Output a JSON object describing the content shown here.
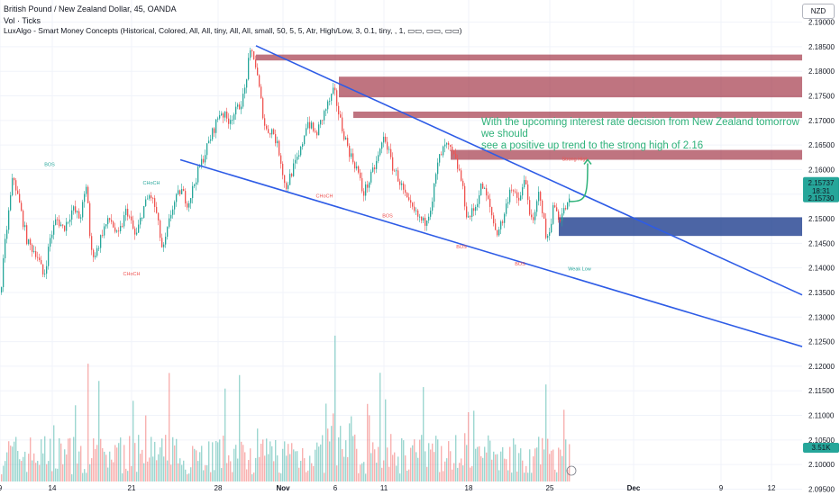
{
  "header": {
    "symbol_line": "British Pound / New Zealand Dollar, 45, OANDA",
    "volume_line": "Vol · Ticks",
    "indicator_line": "LuxAlgo - Smart Money Concepts (Historical, Colored, All, All, tiny, All, All, small, 50, 5, 5, Atr, High/Low, 3, 0.1, tiny, , 1, ▭▭, ▭▭, ▭▭)"
  },
  "toolbar": {
    "currency": "NZD"
  },
  "annotation": {
    "lines": [
      "With the upcoming interest rate decision from New Zealand tomorrow",
      "we should",
      "see a positive up trend to the strong high of 2.16"
    ]
  },
  "price_badge": {
    "price": "2.15737",
    "countdown": "18:31",
    "second_price": "2.15730"
  },
  "volume_badge": "3.51K",
  "colors": {
    "up": "#26a69a",
    "down": "#ef5350",
    "trend_line": "#2e5ce6",
    "supply_zone": "#9c2a3c",
    "demand_zone": "#1f3f8f",
    "annotation": "#2fb27a"
  },
  "chart_data": {
    "type": "candlestick",
    "y_ticks": [
      "2.19000",
      "2.18500",
      "2.18000",
      "2.17500",
      "2.17000",
      "2.16500",
      "2.16000",
      "2.15500",
      "2.15000",
      "2.14500",
      "2.14000",
      "2.13500",
      "2.13000",
      "2.12500",
      "2.12000",
      "2.11500",
      "2.11000",
      "2.10500",
      "2.10000",
      "2.09500"
    ],
    "y_tick_values": [
      2.19,
      2.185,
      2.18,
      2.175,
      2.17,
      2.165,
      2.16,
      2.155,
      2.15,
      2.145,
      2.14,
      2.135,
      2.13,
      2.125,
      2.12,
      2.115,
      2.11,
      2.105,
      2.1,
      2.095
    ],
    "ylim": [
      2.0938,
      2.1945
    ],
    "x_ticks": [
      "9",
      "14",
      "21",
      "28",
      "Nov",
      "6",
      "11",
      "18",
      "25",
      "Dec",
      "9",
      "12"
    ],
    "x_tick_index": [
      0,
      58,
      146,
      242,
      314,
      372,
      426,
      520,
      610,
      703,
      800,
      856
    ],
    "x_total": 932,
    "last_price": 2.15737,
    "price_path": [
      [
        0,
        2.135
      ],
      [
        5,
        2.145
      ],
      [
        14,
        2.159
      ],
      [
        22,
        2.152
      ],
      [
        30,
        2.145
      ],
      [
        40,
        2.143
      ],
      [
        48,
        2.138
      ],
      [
        55,
        2.146
      ],
      [
        62,
        2.15
      ],
      [
        70,
        2.148
      ],
      [
        80,
        2.152
      ],
      [
        88,
        2.15
      ],
      [
        96,
        2.157
      ],
      [
        100,
        2.143
      ],
      [
        106,
        2.143
      ],
      [
        114,
        2.148
      ],
      [
        122,
        2.15
      ],
      [
        130,
        2.146
      ],
      [
        140,
        2.152
      ],
      [
        150,
        2.146
      ],
      [
        158,
        2.152
      ],
      [
        166,
        2.155
      ],
      [
        172,
        2.152
      ],
      [
        180,
        2.143
      ],
      [
        190,
        2.152
      ],
      [
        200,
        2.156
      ],
      [
        208,
        2.153
      ],
      [
        218,
        2.159
      ],
      [
        226,
        2.163
      ],
      [
        236,
        2.168
      ],
      [
        244,
        2.172
      ],
      [
        252,
        2.17
      ],
      [
        262,
        2.172
      ],
      [
        270,
        2.175
      ],
      [
        276,
        2.183
      ],
      [
        280,
        2.184
      ],
      [
        284,
        2.18
      ],
      [
        288,
        2.175
      ],
      [
        294,
        2.168
      ],
      [
        302,
        2.168
      ],
      [
        310,
        2.163
      ],
      [
        316,
        2.156
      ],
      [
        324,
        2.16
      ],
      [
        332,
        2.163
      ],
      [
        340,
        2.17
      ],
      [
        350,
        2.167
      ],
      [
        360,
        2.172
      ],
      [
        370,
        2.176
      ],
      [
        378,
        2.169
      ],
      [
        388,
        2.163
      ],
      [
        396,
        2.16
      ],
      [
        402,
        2.155
      ],
      [
        410,
        2.158
      ],
      [
        418,
        2.162
      ],
      [
        426,
        2.167
      ],
      [
        434,
        2.161
      ],
      [
        442,
        2.158
      ],
      [
        452,
        2.153
      ],
      [
        460,
        2.151
      ],
      [
        470,
        2.149
      ],
      [
        478,
        2.153
      ],
      [
        486,
        2.162
      ],
      [
        494,
        2.165
      ],
      [
        502,
        2.163
      ],
      [
        510,
        2.159
      ],
      [
        518,
        2.15
      ],
      [
        526,
        2.152
      ],
      [
        534,
        2.157
      ],
      [
        542,
        2.153
      ],
      [
        550,
        2.147
      ],
      [
        558,
        2.15
      ],
      [
        566,
        2.157
      ],
      [
        574,
        2.153
      ],
      [
        582,
        2.158
      ],
      [
        590,
        2.148
      ],
      [
        598,
        2.156
      ],
      [
        606,
        2.145
      ],
      [
        614,
        2.153
      ],
      [
        620,
        2.15
      ],
      [
        626,
        2.152
      ],
      [
        632,
        2.1535
      ]
    ],
    "volume": {
      "ylim_px": [
        395,
        530
      ]
    },
    "trend_lines": [
      {
        "from": [
          284,
          2.1852
        ],
        "to": [
          890,
          2.1345
        ]
      },
      {
        "from": [
          200,
          2.162
        ],
        "to": [
          890,
          2.124
        ]
      }
    ],
    "supply_zones": [
      {
        "from": 284,
        "to": 890,
        "top": 2.1834,
        "bottom": 2.1822
      },
      {
        "from": 376,
        "to": 890,
        "top": 2.1789,
        "bottom": 2.1747
      },
      {
        "from": 392,
        "to": 890,
        "top": 2.1718,
        "bottom": 2.1705
      },
      {
        "from": 500,
        "to": 890,
        "top": 2.164,
        "bottom": 2.162
      }
    ],
    "demand_zones": [
      {
        "from": 620,
        "to": 890,
        "top": 2.1503,
        "bottom": 2.1465
      }
    ],
    "structure_labels": [
      {
        "text": "BOS",
        "x": 55,
        "y": 2.1607,
        "color": "up"
      },
      {
        "text": "CHoCH",
        "x": 168,
        "y": 2.157,
        "color": "up"
      },
      {
        "text": "CHoCH",
        "x": 146,
        "y": 2.1385,
        "color": "down"
      },
      {
        "text": "CHoCH",
        "x": 360,
        "y": 2.1543,
        "color": "down"
      },
      {
        "text": "BOS",
        "x": 430,
        "y": 2.1503,
        "color": "down"
      },
      {
        "text": "BOS",
        "x": 512,
        "y": 2.144,
        "color": "down"
      },
      {
        "text": "BOS",
        "x": 577,
        "y": 2.1405,
        "color": "down"
      },
      {
        "text": "Weak Low",
        "x": 643,
        "y": 2.1395,
        "color": "up"
      },
      {
        "text": "Strong High",
        "x": 638,
        "y": 2.1618,
        "color": "down"
      }
    ],
    "projection_arrow": {
      "from": [
        632,
        2.1535
      ],
      "to": [
        652,
        2.162
      ]
    }
  }
}
